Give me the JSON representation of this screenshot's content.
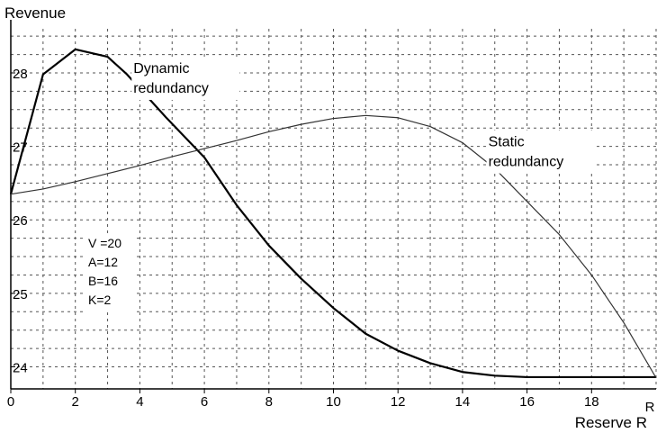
{
  "chart_data": {
    "type": "line",
    "title": "",
    "xlabel": "Reserve R",
    "ylabel": "Revenue",
    "x_axis_end_label": "R",
    "xlim": [
      0,
      20
    ],
    "ylim": [
      23.7,
      28.6
    ],
    "x_ticks": [
      0,
      2,
      4,
      6,
      8,
      10,
      12,
      14,
      16,
      18
    ],
    "y_ticks": [
      24,
      25,
      26,
      27,
      28
    ],
    "grid": true,
    "series": [
      {
        "name": "Dynamic redundancy",
        "color": "#000000",
        "x": [
          0,
          1,
          2,
          3,
          3.6,
          4.8,
          6,
          7,
          8,
          9,
          10,
          11,
          12,
          13,
          14,
          15,
          16,
          17,
          18,
          19,
          20
        ],
        "y": [
          26.35,
          27.98,
          28.32,
          28.22,
          27.98,
          27.4,
          26.85,
          26.2,
          25.65,
          25.2,
          24.8,
          24.45,
          24.22,
          24.05,
          23.93,
          23.88,
          23.86,
          23.86,
          23.86,
          23.86,
          23.86
        ]
      },
      {
        "name": "Static redundancy",
        "color": "#333333",
        "x": [
          0,
          1,
          2,
          3,
          4,
          5,
          6,
          7,
          8,
          9,
          10,
          11,
          12,
          13,
          14,
          15,
          16,
          17,
          18,
          19,
          20
        ],
        "y": [
          26.35,
          26.42,
          26.52,
          26.63,
          26.74,
          26.86,
          26.97,
          27.08,
          27.2,
          27.3,
          27.38,
          27.42,
          27.39,
          27.27,
          27.05,
          26.7,
          26.25,
          25.8,
          25.25,
          24.6,
          23.85
        ]
      }
    ],
    "annotations": [
      {
        "text_lines": [
          "Dynamic",
          "redundancy"
        ],
        "at": [
          3.8,
          28.0
        ]
      },
      {
        "text_lines": [
          "Static",
          "redundancy"
        ],
        "at": [
          14.8,
          27.0
        ]
      }
    ],
    "parameters": [
      "V =20",
      "A=12",
      "B=16",
      "K=2"
    ]
  }
}
